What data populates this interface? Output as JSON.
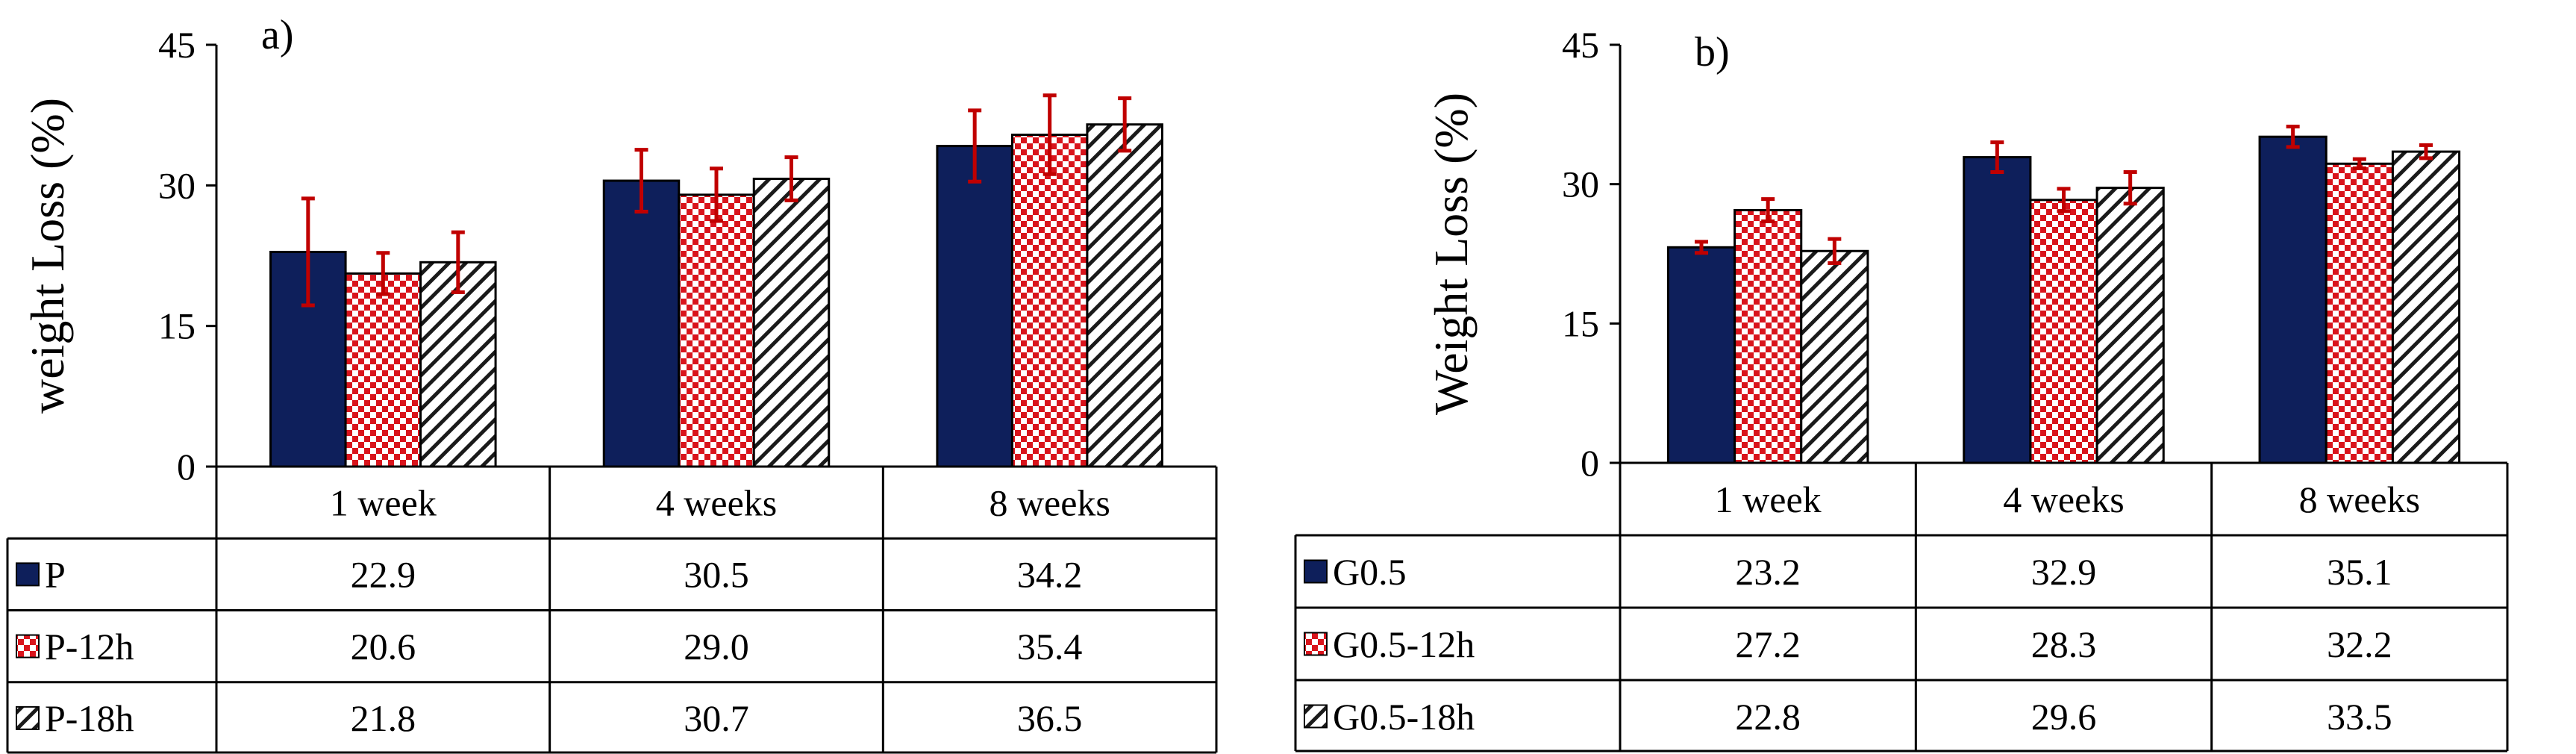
{
  "colors": {
    "series_1": "#0e1f5b",
    "series_2_pattern": "#d9141c",
    "series_3_pattern": "#1a1a1a",
    "error_bar": "#c00000"
  },
  "chart_data": [
    {
      "type": "bar",
      "panel_label": "a)",
      "title": "",
      "xlabel": "",
      "ylabel": "weight Loss (%)",
      "ylim": [
        0,
        45
      ],
      "yticks": [
        "0",
        "15",
        "30",
        "45"
      ],
      "categories": [
        "1 week",
        "4 weeks",
        "8 weeks"
      ],
      "series": [
        {
          "name": "P",
          "pattern": "solid",
          "values": [
            22.9,
            30.5,
            34.2
          ],
          "value_labels": [
            "22.9",
            "30.5",
            "34.2"
          ],
          "errors": [
            5.7,
            3.3,
            3.8
          ]
        },
        {
          "name": "P-12h",
          "pattern": "checker",
          "values": [
            20.6,
            29.0,
            35.4
          ],
          "value_labels": [
            "20.6",
            "29.0",
            "35.4"
          ],
          "errors": [
            2.2,
            2.8,
            4.2
          ]
        },
        {
          "name": "P-18h",
          "pattern": "diagonal",
          "values": [
            21.8,
            30.7,
            36.5
          ],
          "value_labels": [
            "21.8",
            "30.7",
            "36.5"
          ],
          "errors": [
            3.2,
            2.3,
            2.8
          ]
        }
      ]
    },
    {
      "type": "bar",
      "panel_label": "b)",
      "title": "",
      "xlabel": "",
      "ylabel": "Weight Loss (%)",
      "ylim": [
        0,
        45
      ],
      "yticks": [
        "0",
        "15",
        "30",
        "45"
      ],
      "categories": [
        "1 week",
        "4 weeks",
        "8 weeks"
      ],
      "series": [
        {
          "name": "G0.5",
          "pattern": "solid",
          "values": [
            23.2,
            32.9,
            35.1
          ],
          "value_labels": [
            "23.2",
            "32.9",
            "35.1"
          ],
          "errors": [
            0.6,
            1.6,
            1.1
          ]
        },
        {
          "name": "G0.5-12h",
          "pattern": "checker",
          "values": [
            27.2,
            28.3,
            32.2
          ],
          "value_labels": [
            "27.2",
            "28.3",
            "32.2"
          ],
          "errors": [
            1.2,
            1.2,
            0.5
          ]
        },
        {
          "name": "G0.5-18h",
          "pattern": "diagonal",
          "values": [
            22.8,
            29.6,
            33.5
          ],
          "value_labels": [
            "22.8",
            "29.6",
            "33.5"
          ],
          "errors": [
            1.3,
            1.7,
            0.7
          ]
        }
      ]
    }
  ]
}
